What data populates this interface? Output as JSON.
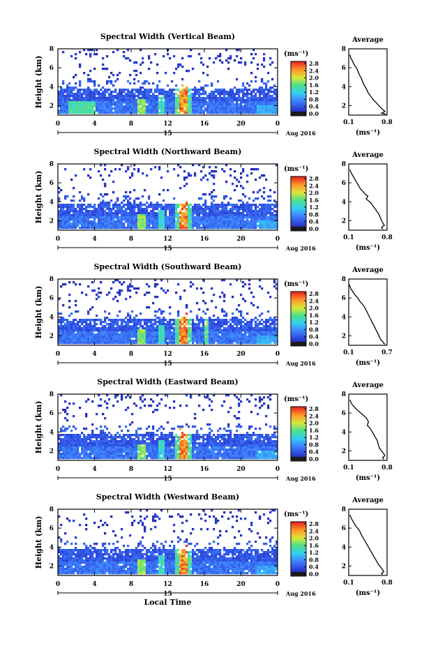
{
  "chart_data": [
    {
      "type": "heatmap",
      "title": "Spectral Width (Vertical Beam)",
      "ylabel": "Height (km)",
      "yticks": [
        "2",
        "4",
        "6",
        "8"
      ],
      "ylim": [
        1,
        8
      ],
      "xticks": [
        "0",
        "4",
        "8",
        "12",
        "16",
        "20",
        "0"
      ],
      "xlim": [
        0,
        24
      ],
      "date_mark": "15",
      "date_label": "Aug 2016",
      "colorbar": {
        "unit": "(ms⁻¹)",
        "ticks": [
          "2.8",
          "2.4",
          "2.0",
          "1.6",
          "1.2",
          "0.8",
          "0.4",
          "0.0"
        ],
        "range": [
          0.0,
          2.8
        ]
      },
      "profile": {
        "title": "Average",
        "unit": "(ms⁻¹)",
        "xticks": [
          "0.1",
          "0.8"
        ],
        "yticks": [
          "2",
          "4",
          "6",
          "8"
        ],
        "xlim": [
          0.1,
          0.8
        ],
        "ylim": [
          1,
          8
        ],
        "x": [
          0.12,
          0.14,
          0.17,
          0.2,
          0.24,
          0.27,
          0.3,
          0.33,
          0.35,
          0.38,
          0.42,
          0.45,
          0.5,
          0.55,
          0.62,
          0.68,
          0.72,
          0.76,
          0.7,
          0.78
        ],
        "y": [
          7.4,
          7.0,
          6.7,
          6.3,
          6.0,
          5.6,
          5.2,
          4.9,
          4.6,
          4.2,
          3.8,
          3.4,
          3.0,
          2.6,
          2.2,
          1.8,
          1.6,
          1.4,
          1.2,
          1.1
        ]
      }
    },
    {
      "type": "heatmap",
      "title": "Spectral Width (Northward Beam)",
      "ylabel": "Height (km)",
      "yticks": [
        "2",
        "4",
        "6",
        "8"
      ],
      "ylim": [
        1,
        8
      ],
      "xticks": [
        "0",
        "4",
        "8",
        "12",
        "16",
        "20",
        "0"
      ],
      "xlim": [
        0,
        24
      ],
      "date_mark": "15",
      "date_label": "Aug 2016",
      "colorbar": {
        "unit": "(ms⁻¹)",
        "ticks": [
          "2.8",
          "2.4",
          "2.0",
          "1.6",
          "1.2",
          "0.8",
          "0.4",
          "0.0"
        ],
        "range": [
          0.0,
          2.8
        ]
      },
      "profile": {
        "title": "Average",
        "unit": "(ms⁻¹)",
        "xticks": [
          "0.1",
          "0.8"
        ],
        "yticks": [
          "2",
          "4",
          "6",
          "8"
        ],
        "xlim": [
          0.1,
          0.8
        ],
        "ylim": [
          1,
          8
        ],
        "x": [
          0.12,
          0.15,
          0.19,
          0.23,
          0.27,
          0.31,
          0.36,
          0.4,
          0.45,
          0.42,
          0.5,
          0.55,
          0.6,
          0.65,
          0.68,
          0.7,
          0.72,
          0.75,
          0.7,
          0.72
        ],
        "y": [
          7.4,
          7.0,
          6.6,
          6.2,
          5.8,
          5.4,
          5.1,
          4.8,
          4.6,
          4.3,
          3.9,
          3.5,
          3.1,
          2.7,
          2.3,
          2.0,
          1.8,
          1.5,
          1.3,
          1.1
        ]
      }
    },
    {
      "type": "heatmap",
      "title": "Spectral Width (Southward Beam)",
      "ylabel": "Height (km)",
      "yticks": [
        "2",
        "4",
        "6",
        "8"
      ],
      "ylim": [
        1,
        8
      ],
      "xticks": [
        "0",
        "4",
        "8",
        "12",
        "16",
        "20",
        "0"
      ],
      "xlim": [
        0,
        24
      ],
      "date_mark": "15",
      "date_label": "Aug 2016",
      "colorbar": {
        "unit": "(ms⁻¹)",
        "ticks": [
          "2.8",
          "2.4",
          "2.0",
          "1.6",
          "1.2",
          "0.8",
          "0.4",
          "0.0"
        ],
        "range": [
          0.0,
          2.8
        ]
      },
      "profile": {
        "title": "Average",
        "unit": "(ms⁻¹)",
        "xticks": [
          "0.1",
          "0.7"
        ],
        "yticks": [
          "2",
          "4",
          "6",
          "8"
        ],
        "xlim": [
          0.1,
          0.7
        ],
        "ylim": [
          1,
          8
        ],
        "x": [
          0.11,
          0.13,
          0.16,
          0.2,
          0.24,
          0.28,
          0.32,
          0.35,
          0.38,
          0.41,
          0.44,
          0.47,
          0.5,
          0.53,
          0.56,
          0.58,
          0.6,
          0.63,
          0.65,
          0.67
        ],
        "y": [
          7.4,
          7.0,
          6.7,
          6.3,
          6.0,
          5.6,
          5.3,
          5.0,
          4.6,
          4.2,
          3.8,
          3.4,
          3.0,
          2.6,
          2.2,
          1.9,
          1.6,
          1.4,
          1.2,
          1.1
        ]
      }
    },
    {
      "type": "heatmap",
      "title": "Spectral Width (Eastward Beam)",
      "ylabel": "Height (km)",
      "yticks": [
        "2",
        "4",
        "6",
        "8"
      ],
      "ylim": [
        1,
        8
      ],
      "xticks": [
        "0",
        "4",
        "8",
        "12",
        "16",
        "20",
        "0"
      ],
      "xlim": [
        0,
        24
      ],
      "date_mark": "15",
      "date_label": "Aug 2016",
      "colorbar": {
        "unit": "(ms⁻¹)",
        "ticks": [
          "2.8",
          "2.4",
          "2.0",
          "1.6",
          "1.2",
          "0.8",
          "0.4",
          "0.0"
        ],
        "range": [
          0.0,
          2.8
        ]
      },
      "profile": {
        "title": "Average",
        "unit": "(ms⁻¹)",
        "xticks": [
          "0.1",
          "0.8"
        ],
        "yticks": [
          "2",
          "4",
          "6",
          "8"
        ],
        "xlim": [
          0.1,
          0.8
        ],
        "ylim": [
          1,
          8
        ],
        "x": [
          0.12,
          0.15,
          0.19,
          0.24,
          0.3,
          0.36,
          0.42,
          0.46,
          0.44,
          0.5,
          0.54,
          0.58,
          0.62,
          0.64,
          0.66,
          0.7,
          0.74,
          0.76,
          0.72,
          0.74
        ],
        "y": [
          7.4,
          7.0,
          6.7,
          6.4,
          6.1,
          5.8,
          5.5,
          5.1,
          4.7,
          4.3,
          3.9,
          3.5,
          3.1,
          2.7,
          2.3,
          2.0,
          1.7,
          1.5,
          1.3,
          1.1
        ]
      }
    },
    {
      "type": "heatmap",
      "title": "Spectral Width (Westward Beam)",
      "ylabel": "Height (km)",
      "yticks": [
        "2",
        "4",
        "6",
        "8"
      ],
      "ylim": [
        1,
        8
      ],
      "xticks": [
        "0",
        "4",
        "8",
        "12",
        "16",
        "20",
        "0"
      ],
      "xlim": [
        0,
        24
      ],
      "date_mark": "15",
      "date_label": "Aug 2016",
      "xlabel": "Local Time",
      "colorbar": {
        "unit": "(ms⁻¹)",
        "ticks": [
          "2.8",
          "2.4",
          "2.0",
          "1.6",
          "1.2",
          "0.8",
          "0.4",
          "0.0"
        ],
        "range": [
          0.0,
          2.8
        ]
      },
      "profile": {
        "title": "Average",
        "unit": "(ms⁻¹)",
        "xticks": [
          "0.1",
          "0.8"
        ],
        "yticks": [
          "2",
          "4",
          "6",
          "8"
        ],
        "xlim": [
          0.1,
          0.8
        ],
        "ylim": [
          1,
          8
        ],
        "x": [
          0.12,
          0.15,
          0.18,
          0.22,
          0.26,
          0.3,
          0.33,
          0.36,
          0.4,
          0.44,
          0.48,
          0.52,
          0.56,
          0.6,
          0.64,
          0.68,
          0.72,
          0.74,
          0.7,
          0.72
        ],
        "y": [
          7.4,
          7.0,
          6.7,
          6.3,
          6.0,
          5.7,
          5.3,
          5.0,
          4.6,
          4.2,
          3.8,
          3.4,
          3.0,
          2.6,
          2.2,
          1.9,
          1.6,
          1.4,
          1.2,
          1.1
        ]
      }
    }
  ]
}
